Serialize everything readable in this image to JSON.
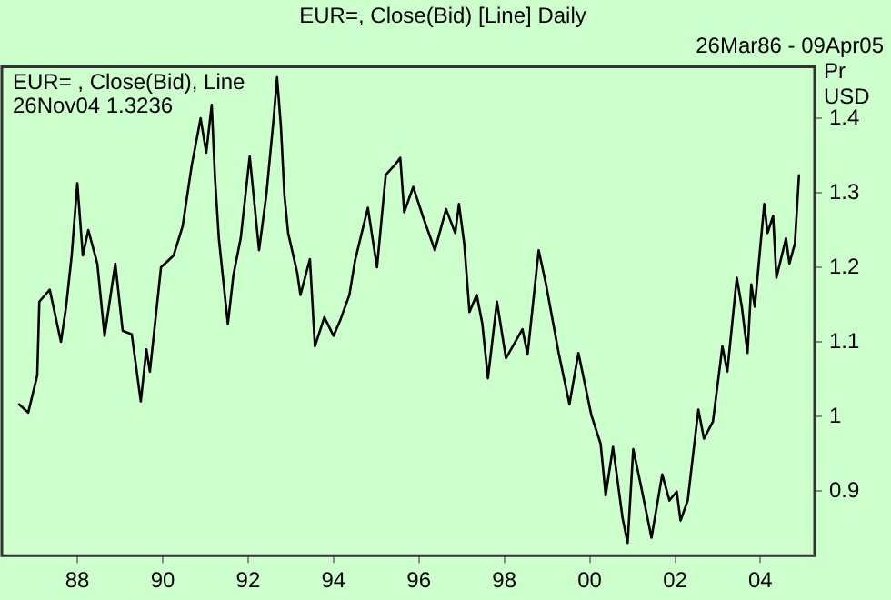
{
  "chart_data": {
    "type": "line",
    "title": "EUR=, Close(Bid) [Line] Daily",
    "subtitle": "26Mar86 - 09Apr05",
    "ylabel": "Pr USD",
    "annotations": [
      "EUR= , Close(Bid), Line",
      "26Nov04 1.3236"
    ],
    "x": [
      "1986-08-21",
      "1986-11-07",
      "1987-01-23",
      "1987-02-10",
      "1987-05-10",
      "1987-08-14",
      "1987-09-27",
      "1987-11-14",
      "1988-01-01",
      "1988-02-17",
      "1988-04-04",
      "1988-06-20",
      "1988-08-21",
      "1988-11-21",
      "1989-01-23",
      "1989-04-11",
      "1989-06-27",
      "1989-08-14",
      "1989-09-13",
      "1989-12-17",
      "1990-04-04",
      "1990-06-20",
      "1990-09-05",
      "1990-11-21",
      "1991-01-08",
      "1991-02-24",
      "1991-03-24",
      "1991-04-26",
      "1991-07-12",
      "1991-08-29",
      "1991-10-30",
      "1992-01-15",
      "1992-04-04",
      "1992-06-05",
      "1992-08-07",
      "1992-09-05",
      "1992-10-08",
      "1992-11-07",
      "1992-12-09",
      "1993-02-24",
      "1993-03-24",
      "1993-06-13",
      "1993-07-26",
      "1993-10-15",
      "1994-01-01",
      "1994-03-02",
      "1994-05-17",
      "1994-07-04",
      "1994-10-22",
      "1995-01-08",
      "1995-03-24",
      "1995-06-13",
      "1995-07-26",
      "1995-08-29",
      "1995-11-14",
      "1996-02-03",
      "1996-05-17",
      "1996-08-21",
      "1996-11-07",
      "1996-12-09",
      "1997-01-23",
      "1997-03-09",
      "1997-05-10",
      "1997-06-27",
      "1997-08-14",
      "1997-10-30",
      "1998-01-15",
      "1998-06-05",
      "1998-07-19",
      "1998-10-22",
      "1998-12-24",
      "1999-04-11",
      "1999-07-12",
      "1999-09-27",
      "2000-01-15",
      "2000-04-04",
      "2000-05-17",
      "2000-07-19",
      "2000-10-08",
      "2000-11-21",
      "2001-01-08",
      "2001-03-24",
      "2001-06-13",
      "2001-09-13",
      "2001-11-14",
      "2002-01-15",
      "2002-02-17",
      "2002-04-19",
      "2002-07-19",
      "2002-09-05",
      "2002-11-21",
      "2003-02-10",
      "2003-03-24",
      "2003-06-13",
      "2003-07-26",
      "2003-09-13",
      "2003-10-15",
      "2003-11-14",
      "2004-02-03",
      "2004-03-02",
      "2004-04-19",
      "2004-05-17",
      "2004-08-07",
      "2004-09-05",
      "2004-10-22",
      "2004-11-26"
    ],
    "series": [
      {
        "color": "#000000",
        "values": [
          1.016,
          1.005,
          1.055,
          1.154,
          1.17,
          1.1,
          1.147,
          1.216,
          1.313,
          1.216,
          1.25,
          1.205,
          1.108,
          1.205,
          1.115,
          1.11,
          1.02,
          1.09,
          1.06,
          1.2,
          1.216,
          1.255,
          1.336,
          1.4,
          1.354,
          1.418,
          1.32,
          1.239,
          1.124,
          1.19,
          1.239,
          1.349,
          1.223,
          1.297,
          1.4,
          1.455,
          1.389,
          1.297,
          1.246,
          1.193,
          1.163,
          1.211,
          1.094,
          1.133,
          1.108,
          1.13,
          1.163,
          1.209,
          1.28,
          1.2,
          1.324,
          1.338,
          1.347,
          1.274,
          1.308,
          1.269,
          1.223,
          1.278,
          1.246,
          1.285,
          1.232,
          1.14,
          1.163,
          1.124,
          1.051,
          1.154,
          1.078,
          1.117,
          1.083,
          1.223,
          1.177,
          1.085,
          1.016,
          1.085,
          1.002,
          0.963,
          0.894,
          0.959,
          0.864,
          0.83,
          0.956,
          0.9,
          0.837,
          0.922,
          0.887,
          0.899,
          0.86,
          0.887,
          1.009,
          0.97,
          0.993,
          1.094,
          1.06,
          1.186,
          1.147,
          1.085,
          1.177,
          1.147,
          1.285,
          1.246,
          1.269,
          1.186,
          1.239,
          1.205,
          1.232,
          1.3236
        ]
      }
    ],
    "xlim": [
      "1986-03-26",
      "2005-04-09"
    ],
    "xticks": [
      {
        "value": "1988-01-01",
        "label": "88"
      },
      {
        "value": "1990-01-01",
        "label": "90"
      },
      {
        "value": "1992-01-01",
        "label": "92"
      },
      {
        "value": "1994-01-01",
        "label": "94"
      },
      {
        "value": "1996-01-01",
        "label": "96"
      },
      {
        "value": "1998-01-01",
        "label": "98"
      },
      {
        "value": "2000-01-01",
        "label": "00"
      },
      {
        "value": "2002-01-01",
        "label": "02"
      },
      {
        "value": "2004-01-01",
        "label": "04"
      }
    ],
    "ylim": [
      0.813,
      1.469
    ],
    "yticks": [
      {
        "value": 0.9,
        "label": "0.9"
      },
      1,
      1.1,
      1.2,
      1.3,
      1.4
    ],
    "grid": false,
    "legend": false,
    "marker": "none",
    "line_style": "solid"
  }
}
